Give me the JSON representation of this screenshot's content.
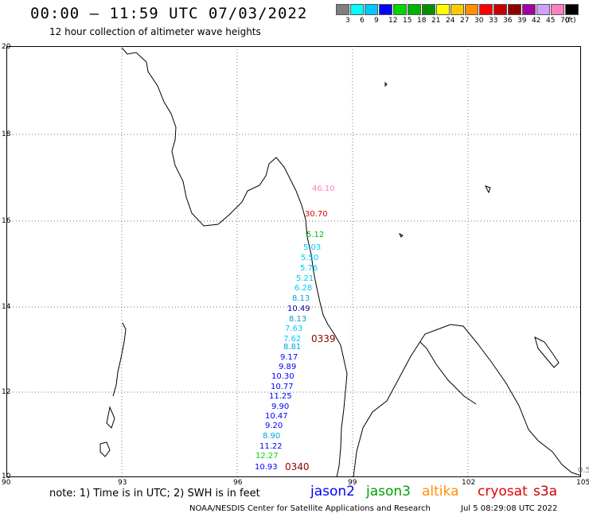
{
  "header": {
    "title": "00:00 – 11:59 UTC 07/03/2022",
    "subtitle": "12 hour collection of altimeter wave heights"
  },
  "colorbar": {
    "colors": [
      "#7f7f7f",
      "#00ffff",
      "#00c8ff",
      "#0000ff",
      "#00d800",
      "#00b400",
      "#009000",
      "#ffff00",
      "#ffc800",
      "#ff9000",
      "#ff0000",
      "#c80000",
      "#900000",
      "#a000a0",
      "#d0a0ff",
      "#ff80c0",
      "#000000"
    ],
    "labels": [
      "3",
      "6",
      "9",
      "12",
      "15",
      "18",
      "21",
      "24",
      "27",
      "30",
      "33",
      "36",
      "39",
      "42",
      "45",
      "70",
      "(ft)"
    ]
  },
  "map": {
    "lat_labels": [
      "20",
      "18",
      "16",
      "14",
      "12",
      "10"
    ],
    "lon_labels": [
      "90",
      "93",
      "96",
      "99",
      "102",
      "105"
    ],
    "wave_heights": [
      {
        "value": "46.10",
        "color": "#ff80c0"
      },
      {
        "value": "30.70",
        "color": "#e00000"
      },
      {
        "value": "5.12",
        "color": "#00b400"
      },
      {
        "value": "5.03",
        "color": "#00c8ff"
      },
      {
        "value": "5.50",
        "color": "#00c8ff"
      },
      {
        "value": "5.76",
        "color": "#00c8ff"
      },
      {
        "value": "5.21",
        "color": "#00c8ff"
      },
      {
        "value": "6.28",
        "color": "#00c8ff"
      },
      {
        "value": "8.13",
        "color": "#00a0e0"
      },
      {
        "value": "10.49",
        "color": "#0000b0"
      },
      {
        "value": "8.13",
        "color": "#00a0e0"
      },
      {
        "value": "7.63",
        "color": "#00c8ff"
      },
      {
        "value": "7.62",
        "color": "#00c8ff"
      },
      {
        "value": "8.81",
        "color": "#00a0e0"
      },
      {
        "value": "9.17",
        "color": "#0000ff"
      },
      {
        "value": "9.89",
        "color": "#0000ff"
      },
      {
        "value": "10.30",
        "color": "#0000ff"
      },
      {
        "value": "10.77",
        "color": "#0000ff"
      },
      {
        "value": "11.25",
        "color": "#0000ff"
      },
      {
        "value": "9.90",
        "color": "#0000ff"
      },
      {
        "value": "10.47",
        "color": "#0000ff"
      },
      {
        "value": "9.20",
        "color": "#0000ff"
      },
      {
        "value": "8.90",
        "color": "#00a0e0"
      },
      {
        "value": "11.22",
        "color": "#0000ff"
      },
      {
        "value": "12.27",
        "color": "#00d800"
      },
      {
        "value": "10.93",
        "color": "#0000ff"
      },
      {
        "value": "0.5",
        "color": "#7f7f7f"
      }
    ],
    "pass_labels": [
      {
        "value": "0339",
        "color": "#900000"
      },
      {
        "value": "0340",
        "color": "#900000"
      }
    ]
  },
  "footer": {
    "note": "note: 1) Time is in UTC; 2) SWH is in feet",
    "satellites": [
      {
        "name": "jason2",
        "color": "#0000ff"
      },
      {
        "name": "jason3",
        "color": "#00a000"
      },
      {
        "name": "altika",
        "color": "#ff9000"
      },
      {
        "name": "cryosat",
        "color": "#e00000"
      },
      {
        "name": "s3a",
        "color": "#c80000"
      }
    ],
    "credit": "NOAA/NESDIS Center for Satellite Applications and Research",
    "timestamp": "Jul  5 08:29:08 UTC 2022"
  }
}
